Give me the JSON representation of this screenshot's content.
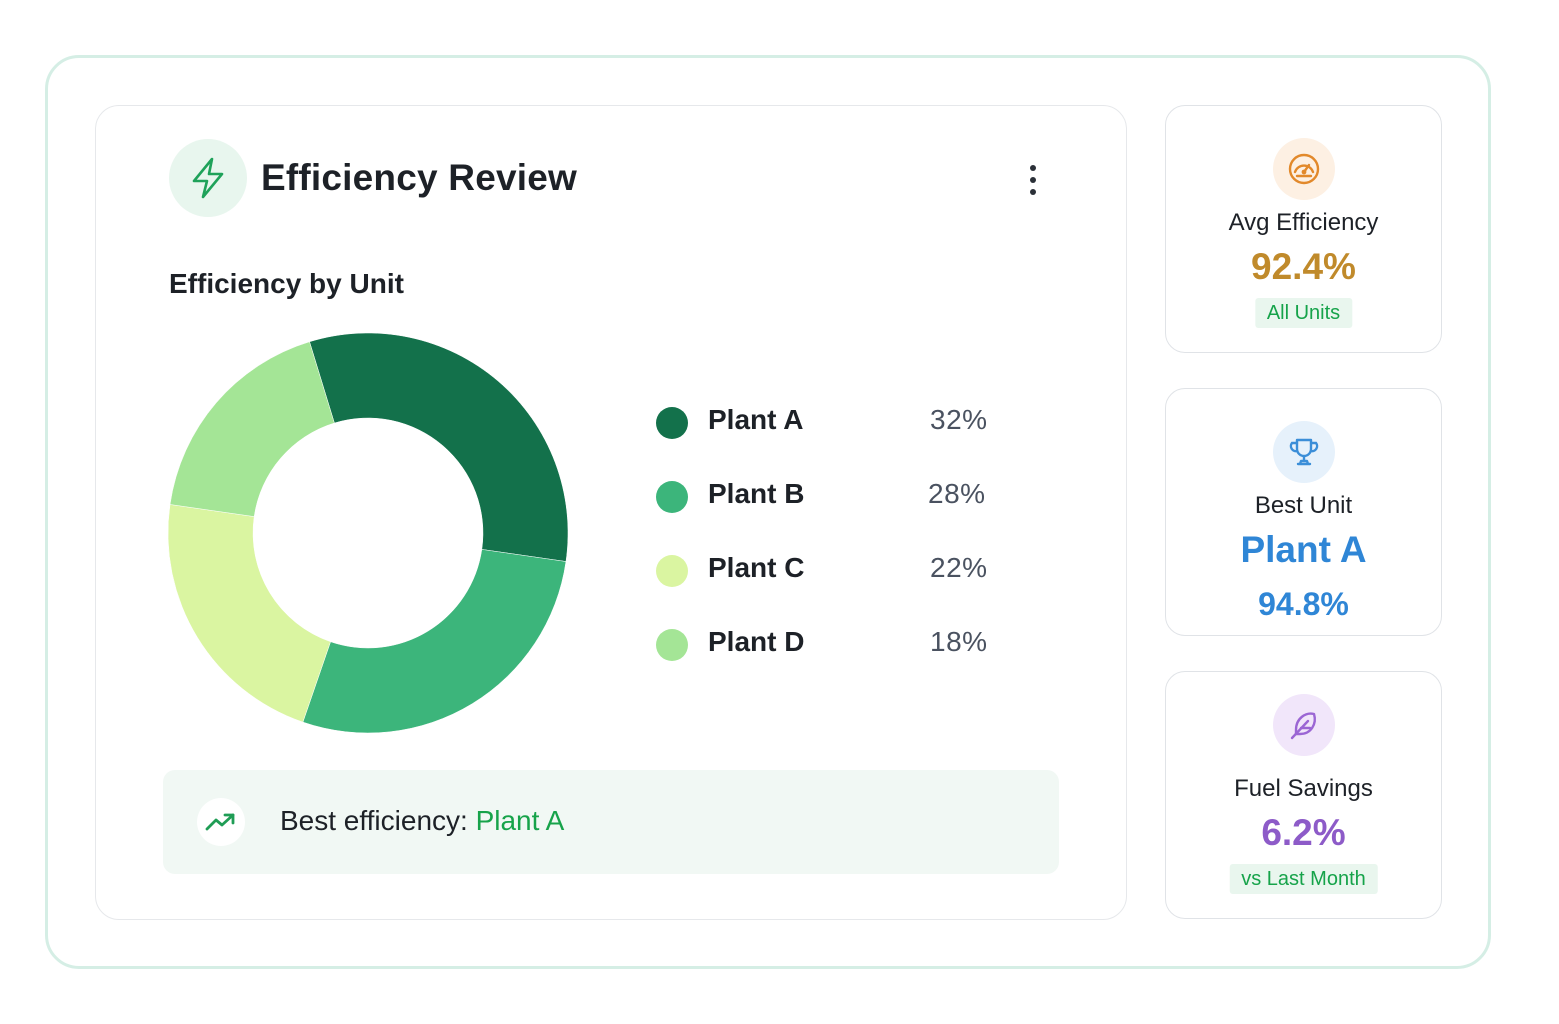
{
  "header": {
    "title": "Efficiency Review",
    "icon": "lightning-bolt-icon",
    "menu_icon": "more-vertical-icon"
  },
  "section_title": "Efficiency by Unit",
  "chart_data": {
    "type": "pie",
    "title": "Efficiency by Unit",
    "categories": [
      "Plant A",
      "Plant B",
      "Plant C",
      "Plant D"
    ],
    "values": [
      32,
      28,
      22,
      18
    ],
    "value_labels": [
      "32%",
      "28%",
      "22%",
      "18%"
    ],
    "colors": [
      "#13714b",
      "#3cb57b",
      "#daf5a1",
      "#a4e596"
    ],
    "legend_position": "right"
  },
  "banner": {
    "label": "Best efficiency:",
    "value": "Plant A",
    "icon": "trending-up-icon"
  },
  "stats": [
    {
      "label": "Avg Efficiency",
      "value": "92.4%",
      "pill": "All Units",
      "icon": "speedometer-icon",
      "value_color": "#c08a2b",
      "icon_bg": "#fdf0e3"
    },
    {
      "label": "Best Unit",
      "value": "Plant A",
      "sub_value": "94.8%",
      "icon": "trophy-icon",
      "value_color": "#2f86d6",
      "icon_bg": "#e6f1fb"
    },
    {
      "label": "Fuel Savings",
      "value": "6.2%",
      "pill": "vs Last Month",
      "icon": "feather-icon",
      "value_color": "#8d5bc8",
      "icon_bg": "#f1e6fa"
    }
  ]
}
